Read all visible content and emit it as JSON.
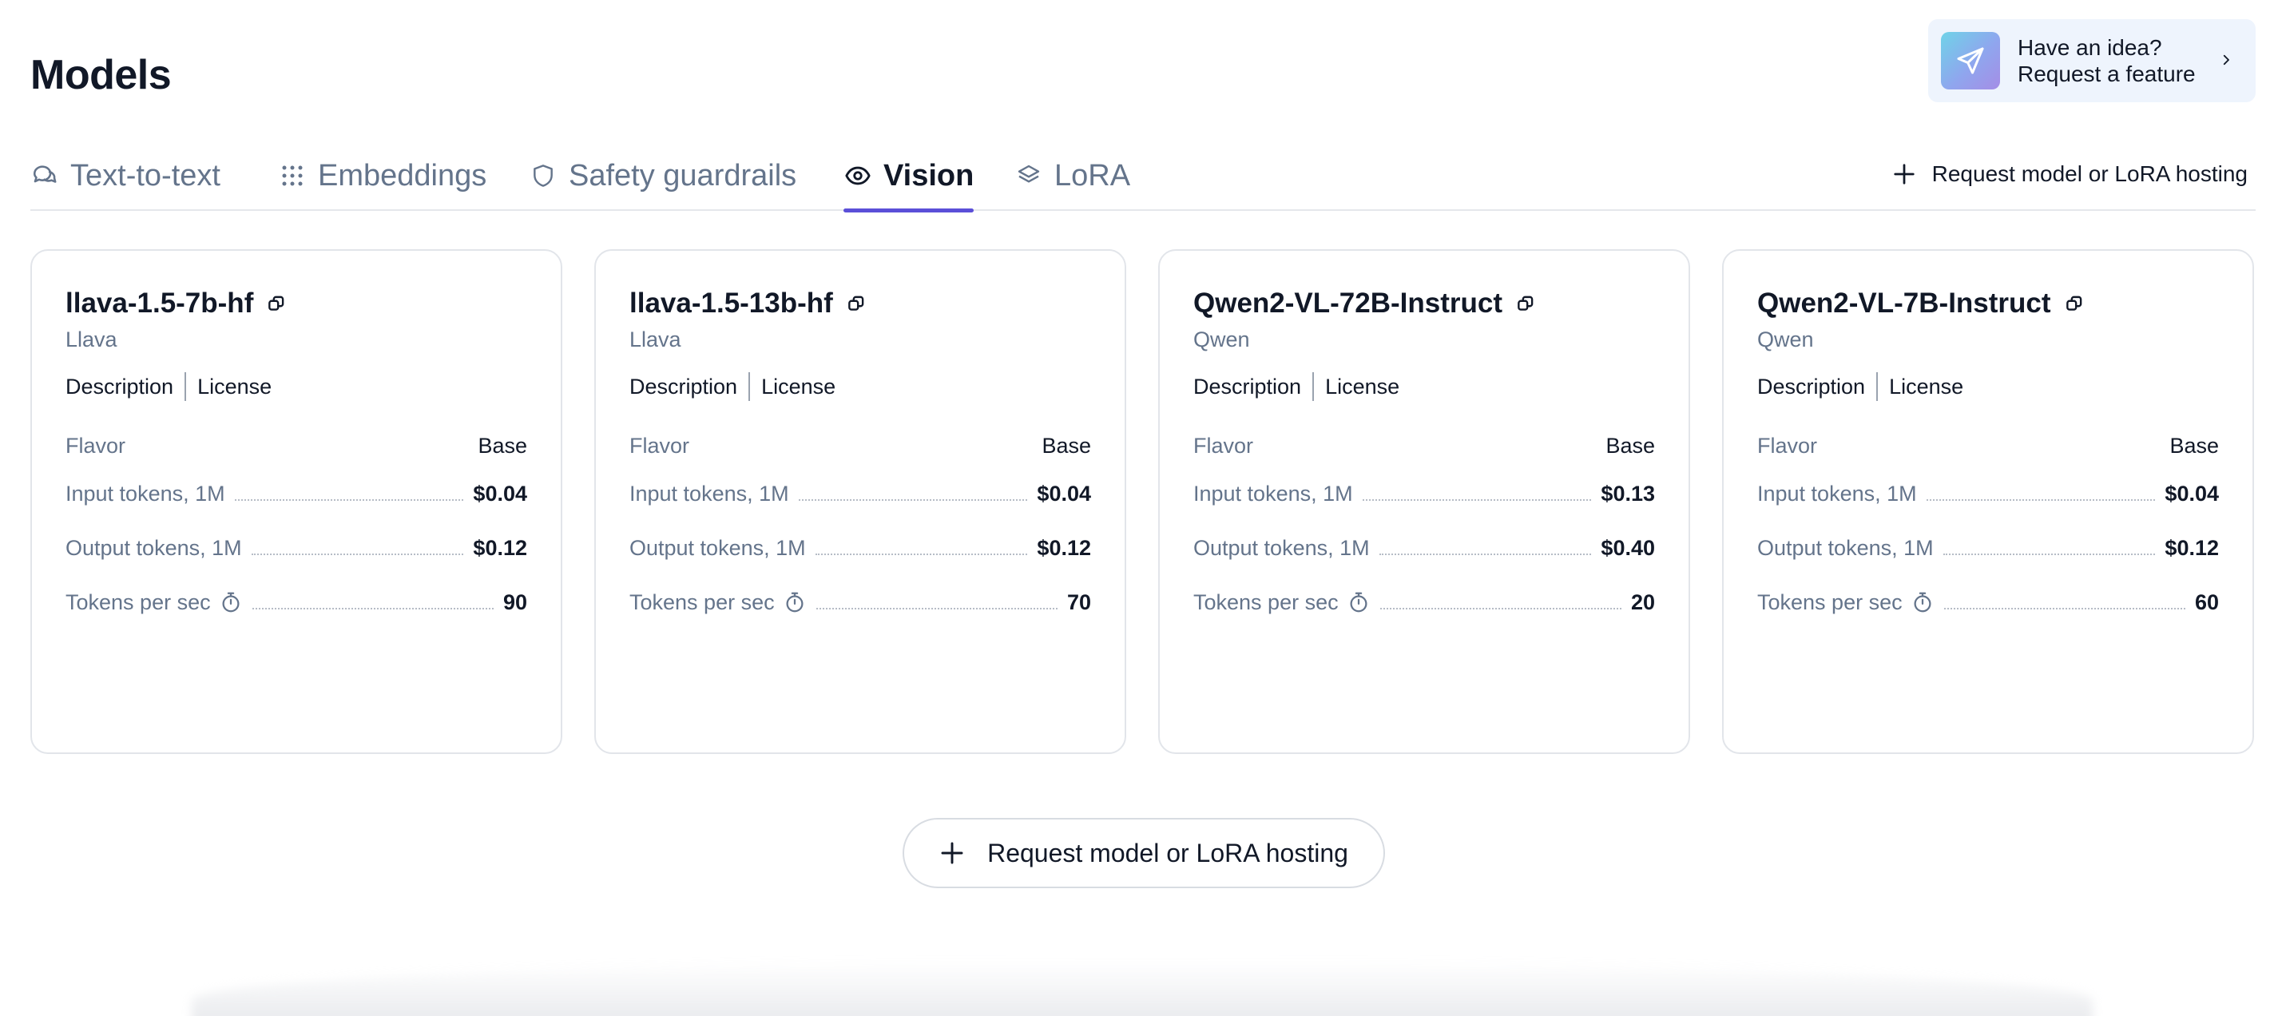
{
  "page": {
    "title": "Models"
  },
  "feature_request": {
    "line1": "Have an idea?",
    "line2": "Request a feature"
  },
  "tabs": [
    {
      "label": "Text-to-text",
      "icon": "chat-bubbles-icon",
      "active": false
    },
    {
      "label": "Embeddings",
      "icon": "grid-dots-icon",
      "active": false
    },
    {
      "label": "Safety guardrails",
      "icon": "shield-icon",
      "active": false
    },
    {
      "label": "Vision",
      "icon": "eye-icon",
      "active": true
    },
    {
      "label": "LoRA",
      "icon": "layers-icon",
      "active": false
    }
  ],
  "request_link": {
    "label": "Request model or LoRA hosting"
  },
  "row_labels": {
    "flavor": "Flavor",
    "input": "Input tokens, 1M",
    "output": "Output tokens, 1M",
    "speed": "Tokens per sec"
  },
  "link_labels": {
    "description": "Description",
    "license": "License"
  },
  "cards": [
    {
      "name": "llava-1.5-7b-hf",
      "vendor": "Llava",
      "flavor": "Base",
      "input_price": "$0.04",
      "output_price": "$0.12",
      "tokens_per_sec": "90"
    },
    {
      "name": "llava-1.5-13b-hf",
      "vendor": "Llava",
      "flavor": "Base",
      "input_price": "$0.04",
      "output_price": "$0.12",
      "tokens_per_sec": "70"
    },
    {
      "name": "Qwen2-VL-72B-Instruct",
      "vendor": "Qwen",
      "flavor": "Base",
      "input_price": "$0.13",
      "output_price": "$0.40",
      "tokens_per_sec": "20"
    },
    {
      "name": "Qwen2-VL-7B-Instruct",
      "vendor": "Qwen",
      "flavor": "Base",
      "input_price": "$0.04",
      "output_price": "$0.12",
      "tokens_per_sec": "60"
    }
  ],
  "bottom_button": {
    "label": "Request model or LoRA hosting"
  },
  "colors": {
    "accent": "#5b4fd8",
    "text": "#111827",
    "muted": "#64748b",
    "feature_bg": "#eef4fd"
  }
}
